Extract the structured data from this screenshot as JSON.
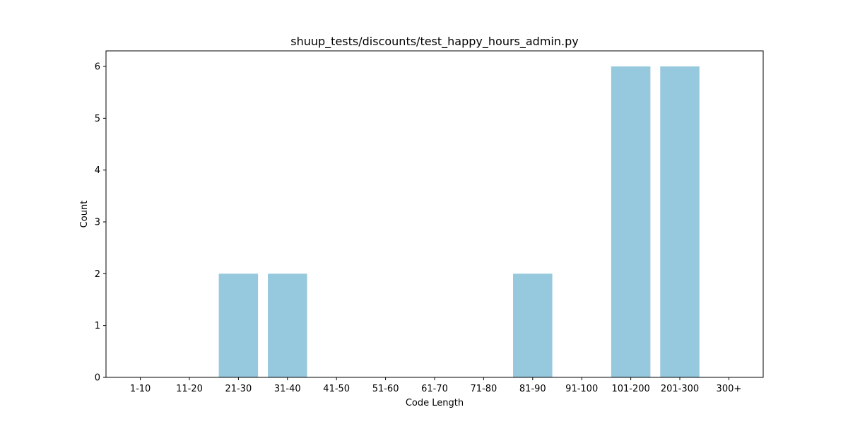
{
  "chart_data": {
    "type": "bar",
    "title": "shuup_tests/discounts/test_happy_hours_admin.py",
    "xlabel": "Code Length",
    "ylabel": "Count",
    "categories": [
      "1-10",
      "11-20",
      "21-30",
      "31-40",
      "41-50",
      "51-60",
      "61-70",
      "71-80",
      "81-90",
      "91-100",
      "101-200",
      "201-300",
      "300+"
    ],
    "values": [
      0,
      0,
      2,
      2,
      0,
      0,
      0,
      0,
      2,
      0,
      6,
      6,
      0
    ],
    "ylim": [
      0,
      6.3
    ],
    "yticks": [
      0,
      1,
      2,
      3,
      4,
      5,
      6
    ],
    "bar_color": "#96c9dd",
    "grid": false,
    "legend": "none"
  }
}
